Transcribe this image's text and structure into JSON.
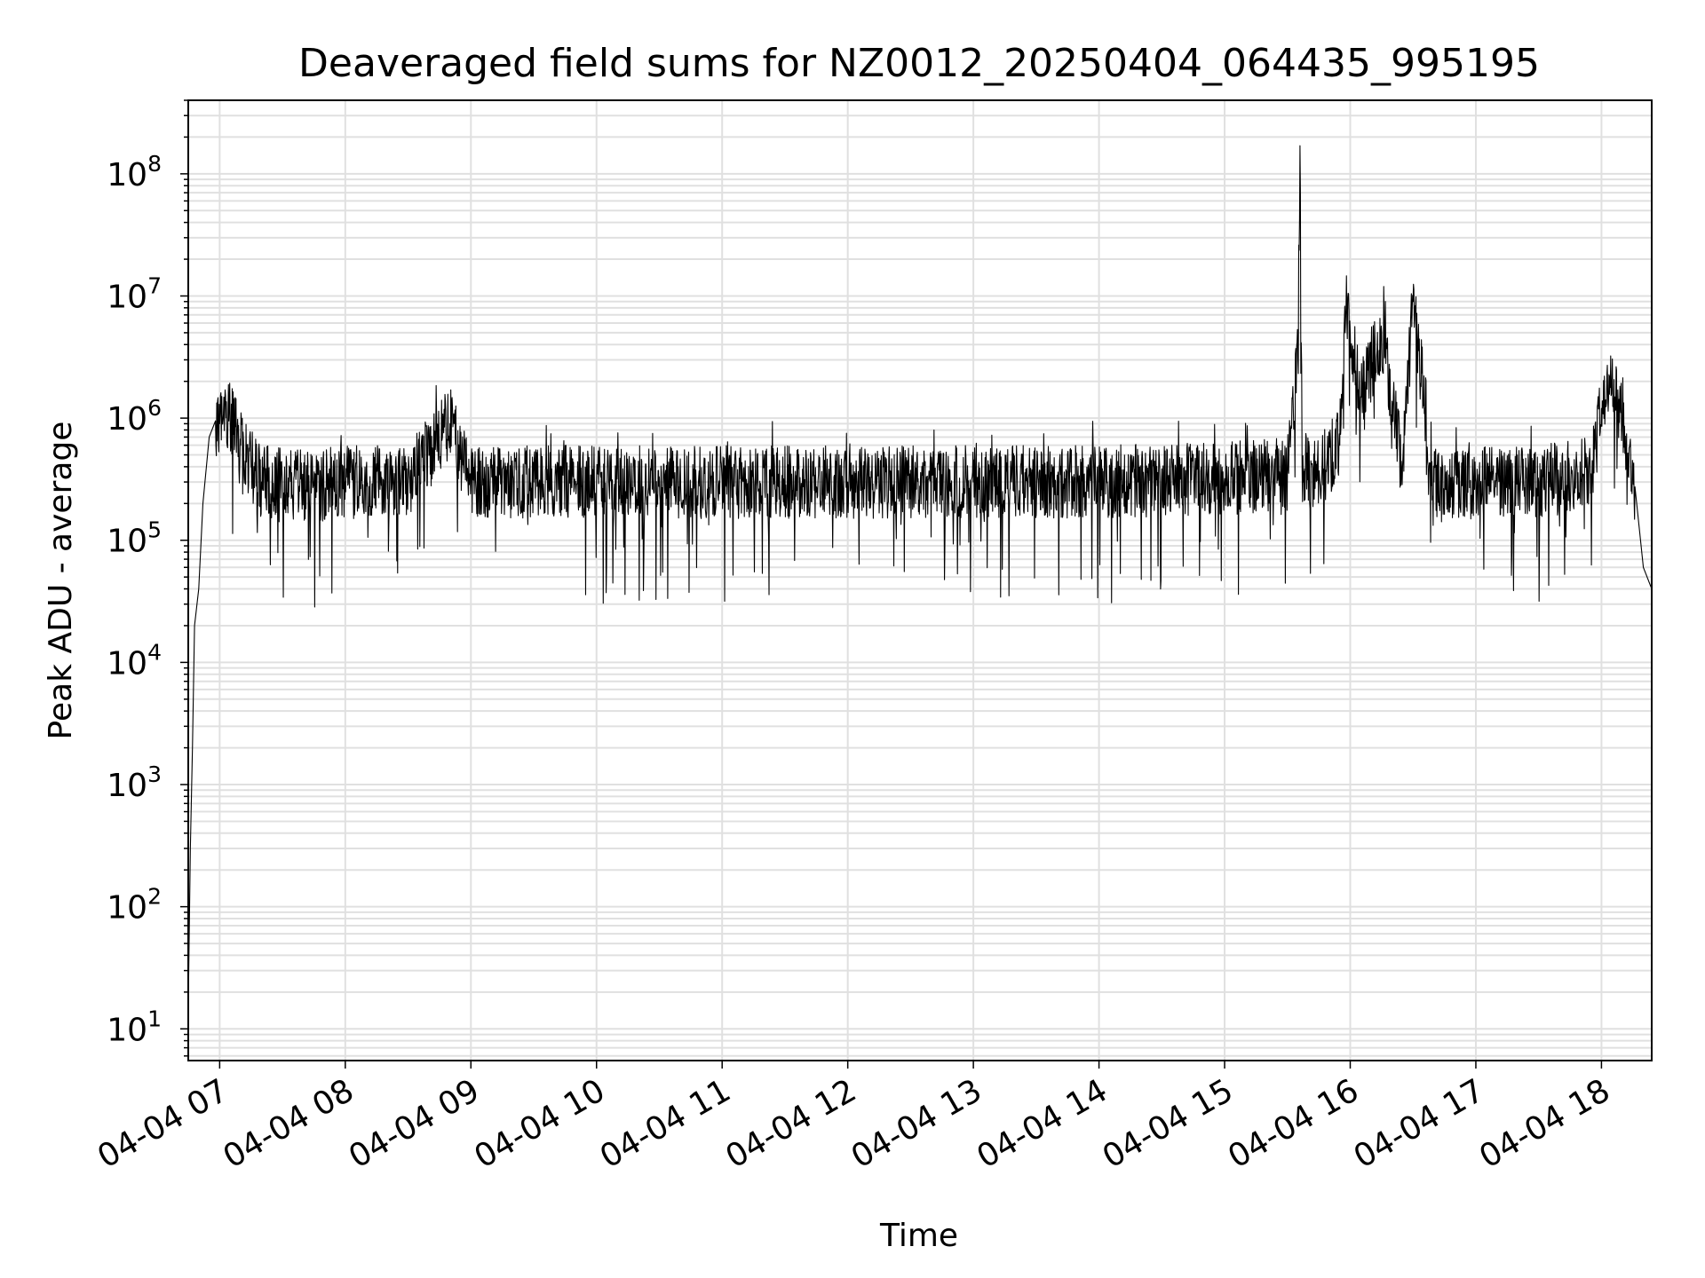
{
  "chart_data": {
    "type": "line",
    "title": "Deaveraged field sums for NZ0012_20250404_064435_995195",
    "xlabel": "Time",
    "ylabel": "Peak ADU - average",
    "yscale": "log",
    "ylim": [
      5.5,
      400000000
    ],
    "xlim": [
      "04-04 06:45",
      "04-04 18:24"
    ],
    "grid": true,
    "line_color": "#000000",
    "grid_color": "#e0e0e0",
    "x_tick_labels": [
      "04-04 07",
      "04-04 08",
      "04-04 09",
      "04-04 10",
      "04-04 11",
      "04-04 12",
      "04-04 13",
      "04-04 14",
      "04-04 15",
      "04-04 16",
      "04-04 17",
      "04-04 18"
    ],
    "y_tick_labels": [
      {
        "base": "10",
        "exp": "1"
      },
      {
        "base": "10",
        "exp": "2"
      },
      {
        "base": "10",
        "exp": "3"
      },
      {
        "base": "10",
        "exp": "4"
      },
      {
        "base": "10",
        "exp": "5"
      },
      {
        "base": "10",
        "exp": "6"
      },
      {
        "base": "10",
        "exp": "7"
      },
      {
        "base": "10",
        "exp": "8"
      }
    ],
    "series": [
      {
        "x": [
          "04-04 06:45",
          "04-04 06:46",
          "04-04 06:47",
          "04-04 06:48",
          "04-04 06:50",
          "04-04 06:52",
          "04-04 06:55",
          "04-04 06:58",
          "04-04 07:00",
          "04-04 07:05",
          "04-04 07:10",
          "04-04 07:15",
          "04-04 07:20",
          "04-04 07:30",
          "04-04 07:45",
          "04-04 08:00",
          "04-04 08:30",
          "04-04 08:50",
          "04-04 09:00",
          "04-04 09:30",
          "04-04 10:00",
          "04-04 11:00",
          "04-04 12:00",
          "04-04 13:00",
          "04-04 14:00",
          "04-04 15:00",
          "04-04 15:30",
          "04-04 15:35",
          "04-04 15:36",
          "04-04 15:37",
          "04-04 15:45",
          "04-04 15:55",
          "04-04 15:58",
          "04-04 16:05",
          "04-04 16:15",
          "04-04 16:25",
          "04-04 16:30",
          "04-04 16:40",
          "04-04 17:00",
          "04-04 17:30",
          "04-04 17:55",
          "04-04 18:00",
          "04-04 18:05",
          "04-04 18:10",
          "04-04 18:15",
          "04-04 18:20",
          "04-04 18:24"
        ],
        "y": [
          15,
          300,
          2000,
          20000,
          40000,
          200000,
          700000,
          950000,
          900000,
          1000000,
          600000,
          400000,
          300000,
          300000,
          280000,
          300000,
          300000,
          900000,
          300000,
          300000,
          300000,
          300000,
          300000,
          300000,
          300000,
          320000,
          350000,
          3000000,
          170000000,
          400000,
          350000,
          600000,
          8000000,
          1500000,
          5000000,
          400000,
          9000000,
          300000,
          300000,
          300000,
          350000,
          1200000,
          2000000,
          1000000,
          400000,
          60000,
          40000
        ]
      }
    ]
  }
}
